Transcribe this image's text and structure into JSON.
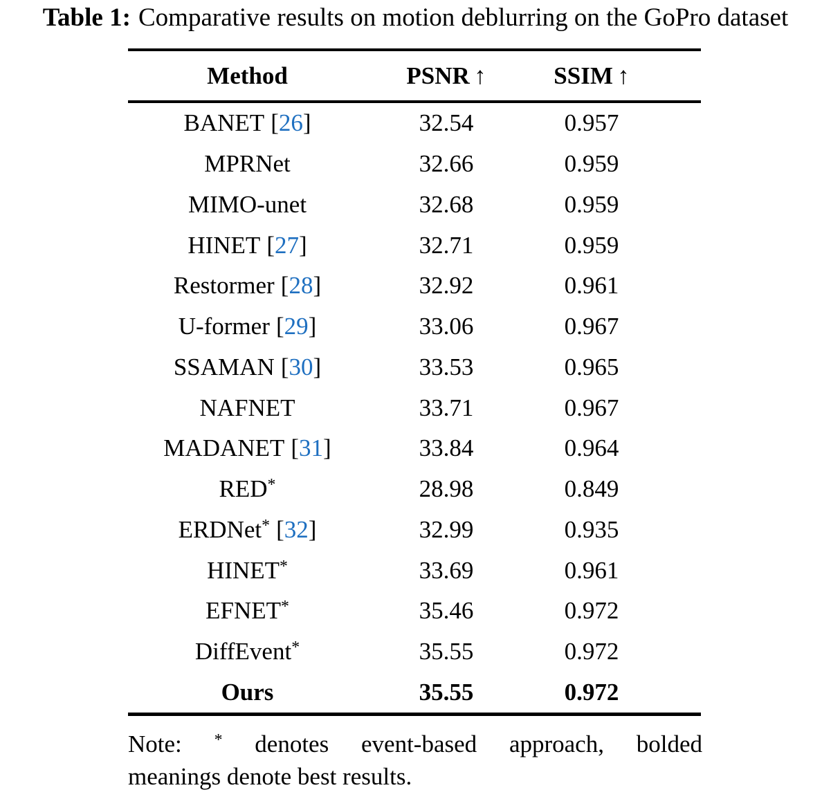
{
  "caption": {
    "label": "Table 1:",
    "text": "Comparative results on motion deblurring on the GoPro dataset"
  },
  "table": {
    "headers": {
      "method": "Method",
      "psnr": "PSNR",
      "ssim": "SSIM",
      "arrow": "↑"
    },
    "cite_open": "[",
    "cite_close": "]",
    "star_glyph": "*",
    "rows": [
      {
        "method": "BANET",
        "cite": "26",
        "star": false,
        "psnr": "32.54",
        "ssim": "0.957",
        "bold": false
      },
      {
        "method": "MPRNet",
        "cite": "",
        "star": false,
        "psnr": "32.66",
        "ssim": "0.959",
        "bold": false
      },
      {
        "method": "MIMO-unet",
        "cite": "",
        "star": false,
        "psnr": "32.68",
        "ssim": "0.959",
        "bold": false
      },
      {
        "method": "HINET",
        "cite": "27",
        "star": false,
        "psnr": "32.71",
        "ssim": "0.959",
        "bold": false
      },
      {
        "method": "Restormer",
        "cite": "28",
        "star": false,
        "psnr": "32.92",
        "ssim": "0.961",
        "bold": false
      },
      {
        "method": "U-former",
        "cite": "29",
        "star": false,
        "psnr": "33.06",
        "ssim": "0.967",
        "bold": false
      },
      {
        "method": "SSAMAN",
        "cite": "30",
        "star": false,
        "psnr": "33.53",
        "ssim": "0.965",
        "bold": false
      },
      {
        "method": "NAFNET",
        "cite": "",
        "star": false,
        "psnr": "33.71",
        "ssim": "0.967",
        "bold": false
      },
      {
        "method": "MADANET",
        "cite": "31",
        "star": false,
        "psnr": "33.84",
        "ssim": "0.964",
        "bold": false
      },
      {
        "method": "RED",
        "cite": "",
        "star": true,
        "psnr": "28.98",
        "ssim": "0.849",
        "bold": false
      },
      {
        "method": "ERDNet",
        "cite": "32",
        "star": true,
        "psnr": "32.99",
        "ssim": "0.935",
        "bold": false
      },
      {
        "method": "HINET",
        "cite": "",
        "star": true,
        "psnr": "33.69",
        "ssim": "0.961",
        "bold": false
      },
      {
        "method": "EFNET",
        "cite": "",
        "star": true,
        "psnr": "35.46",
        "ssim": "0.972",
        "bold": false
      },
      {
        "method": "DiffEvent",
        "cite": "",
        "star": true,
        "psnr": "35.55",
        "ssim": "0.972",
        "bold": false
      },
      {
        "method": "Ours",
        "cite": "",
        "star": false,
        "psnr": "35.55",
        "ssim": "0.972",
        "bold": true
      }
    ]
  },
  "note": {
    "line1_prefix": "Note:",
    "star": "*",
    "line1_rest": "denotes event-based approach, bolded",
    "line2": "meanings denote best results."
  },
  "colors": {
    "citation_blue": "#1e6fc0",
    "text": "#000000",
    "background": "#ffffff"
  }
}
